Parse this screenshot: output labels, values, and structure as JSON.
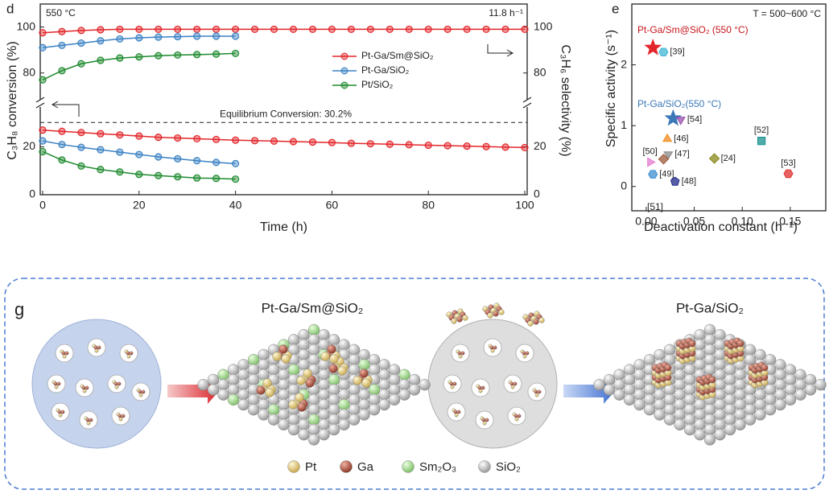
{
  "chart_data": [
    {
      "type": "line",
      "panel": "d",
      "x_label": "Time (h)",
      "y_label": "C₃H₈ conversion (%)",
      "y2_label": "C₃H₆ selectivity (%)",
      "xlim": [
        -0.5,
        100.5
      ],
      "xticks": [
        0,
        20,
        40,
        60,
        80,
        100
      ],
      "ylim": [
        0,
        110
      ],
      "ybreak": [
        37,
        68
      ],
      "yticks": [
        0,
        20,
        80,
        100
      ],
      "y2lim": [
        0,
        110
      ],
      "y2ticks": [
        0,
        20,
        80,
        100
      ],
      "annotations": [
        "550 °C",
        "11.8 h⁻¹"
      ],
      "equilibrium": 30.2,
      "equilibrium_label": "Equilibrium Conversion: 30.2%",
      "series": [
        {
          "name": "Pt-Ga/Sm@SiO₂",
          "color": "#e3262b",
          "x": [
            0,
            4,
            8,
            12,
            16,
            20,
            24,
            28,
            32,
            36,
            40,
            44,
            48,
            52,
            56,
            60,
            64,
            68,
            72,
            76,
            80,
            84,
            88,
            92,
            96,
            100
          ],
          "values": [
            27,
            26.5,
            26,
            25.5,
            25,
            24.5,
            24,
            23.7,
            23.4,
            23.1,
            22.8,
            22.6,
            22.4,
            22.2,
            22,
            21.8,
            21.5,
            21.3,
            21.1,
            20.9,
            20.7,
            20.5,
            20.3,
            20.1,
            19.9,
            19.7
          ],
          "y2_values": [
            97.5,
            98,
            98.5,
            98.8,
            99,
            99,
            99,
            99,
            99,
            99,
            99,
            99,
            99,
            99,
            99,
            99,
            99,
            99,
            99,
            99,
            99,
            99,
            99,
            99,
            99,
            99
          ]
        },
        {
          "name": "Pt-Ga/SiO₂",
          "color": "#3b82c4",
          "x": [
            0,
            4,
            8,
            12,
            16,
            20,
            24,
            28,
            32,
            36,
            40
          ],
          "values": [
            22.5,
            21,
            19.8,
            18.8,
            17.8,
            16.8,
            15.8,
            15,
            14.2,
            13.5,
            13
          ],
          "y2_values": [
            91,
            92,
            93,
            94,
            94.8,
            95.3,
            95.6,
            95.8,
            96,
            96,
            96
          ]
        },
        {
          "name": "Pt/SiO₂",
          "color": "#1e8a2e",
          "x": [
            0,
            4,
            8,
            12,
            16,
            20,
            24,
            28,
            32,
            36,
            40
          ],
          "values": [
            18,
            14.5,
            12,
            10.5,
            9.5,
            8.5,
            8,
            7.5,
            7,
            6.8,
            6.5
          ],
          "y2_values": [
            77,
            81,
            84,
            85.5,
            86.5,
            87,
            87.5,
            87.8,
            88,
            88.2,
            88.5
          ]
        }
      ]
    },
    {
      "type": "scatter",
      "panel": "e",
      "x_label": "Deactivation constant (h⁻¹)",
      "y_label": "Specific activity (s⁻¹)",
      "xlim": [
        -0.015,
        0.187
      ],
      "xticks": [
        {
          "value": 0,
          "label": "0.00"
        },
        {
          "value": 0.05,
          "label": "0.05"
        },
        {
          "value": 0.1,
          "label": "0.10"
        },
        {
          "value": 0.15,
          "label": "0.15"
        }
      ],
      "ylim": [
        -0.4,
        3
      ],
      "yticks": [
        0,
        1,
        2
      ],
      "annotations": [
        {
          "text": "T = 500~600 °C",
          "color": "#222"
        },
        {
          "text": "Pt-Ga/Sm@SiO₂ (550 °C)",
          "color": "#c8151b"
        },
        {
          "text": "Pt-Ga/SiO₂(550 °C)",
          "color": "#3b78b8"
        },
        {
          "text": "[51]",
          "color": "#222"
        }
      ],
      "points": [
        {
          "x": 0.007,
          "y": 2.28,
          "label": null,
          "marker": "star",
          "color": "#e3262b",
          "label_side": "right"
        },
        {
          "x": 0.018,
          "y": 2.21,
          "label": "[39]",
          "marker": "hexagon",
          "color": "#3fb7d6",
          "label_side": "right"
        },
        {
          "x": 0.028,
          "y": 1.12,
          "label": null,
          "marker": "star",
          "color": "#3b78b8",
          "label_side": "right"
        },
        {
          "x": 0.036,
          "y": 1.1,
          "label": "[54]",
          "marker": "triangle-down",
          "color": "#9b4fb0",
          "label_side": "right"
        },
        {
          "x": 0.022,
          "y": 0.78,
          "label": "[46]",
          "marker": "triangle",
          "color": "#f08a1c",
          "label_side": "right"
        },
        {
          "x": 0.12,
          "y": 0.75,
          "label": "[52]",
          "marker": "square",
          "color": "#16908c",
          "label_side": "above"
        },
        {
          "x": 0.023,
          "y": 0.53,
          "label": "[47]",
          "marker": "triangle-down",
          "color": "#8a8a8a",
          "label_side": "right"
        },
        {
          "x": 0.018,
          "y": 0.45,
          "label": null,
          "marker": "diamond",
          "color": "#9c5a3a",
          "label_side": "right"
        },
        {
          "x": 0.004,
          "y": 0.4,
          "label": "[50]",
          "marker": "triangle-right",
          "color": "#e47bd0",
          "label_side": "above"
        },
        {
          "x": 0.071,
          "y": 0.46,
          "label": "[24]",
          "marker": "diamond",
          "color": "#8a8a1a",
          "label_side": "right"
        },
        {
          "x": 0.007,
          "y": 0.2,
          "label": "[49]",
          "marker": "hexagon",
          "color": "#3d8fd0",
          "label_side": "right"
        },
        {
          "x": 0.03,
          "y": 0.08,
          "label": "[48]",
          "marker": "pentagon",
          "color": "#1f2a8a",
          "label_side": "right"
        },
        {
          "x": 0.148,
          "y": 0.21,
          "label": "[53]",
          "marker": "hexagon",
          "color": "#e03030",
          "label_side": "above"
        }
      ]
    }
  ],
  "diagram": {
    "panel": "g",
    "titles": [
      "Pt-Ga/Sm@SiO₂",
      "Pt-Ga/SiO₂"
    ],
    "legend": [
      "Pt",
      "Ga",
      "Sm₂O₃",
      "SiO₂"
    ]
  }
}
